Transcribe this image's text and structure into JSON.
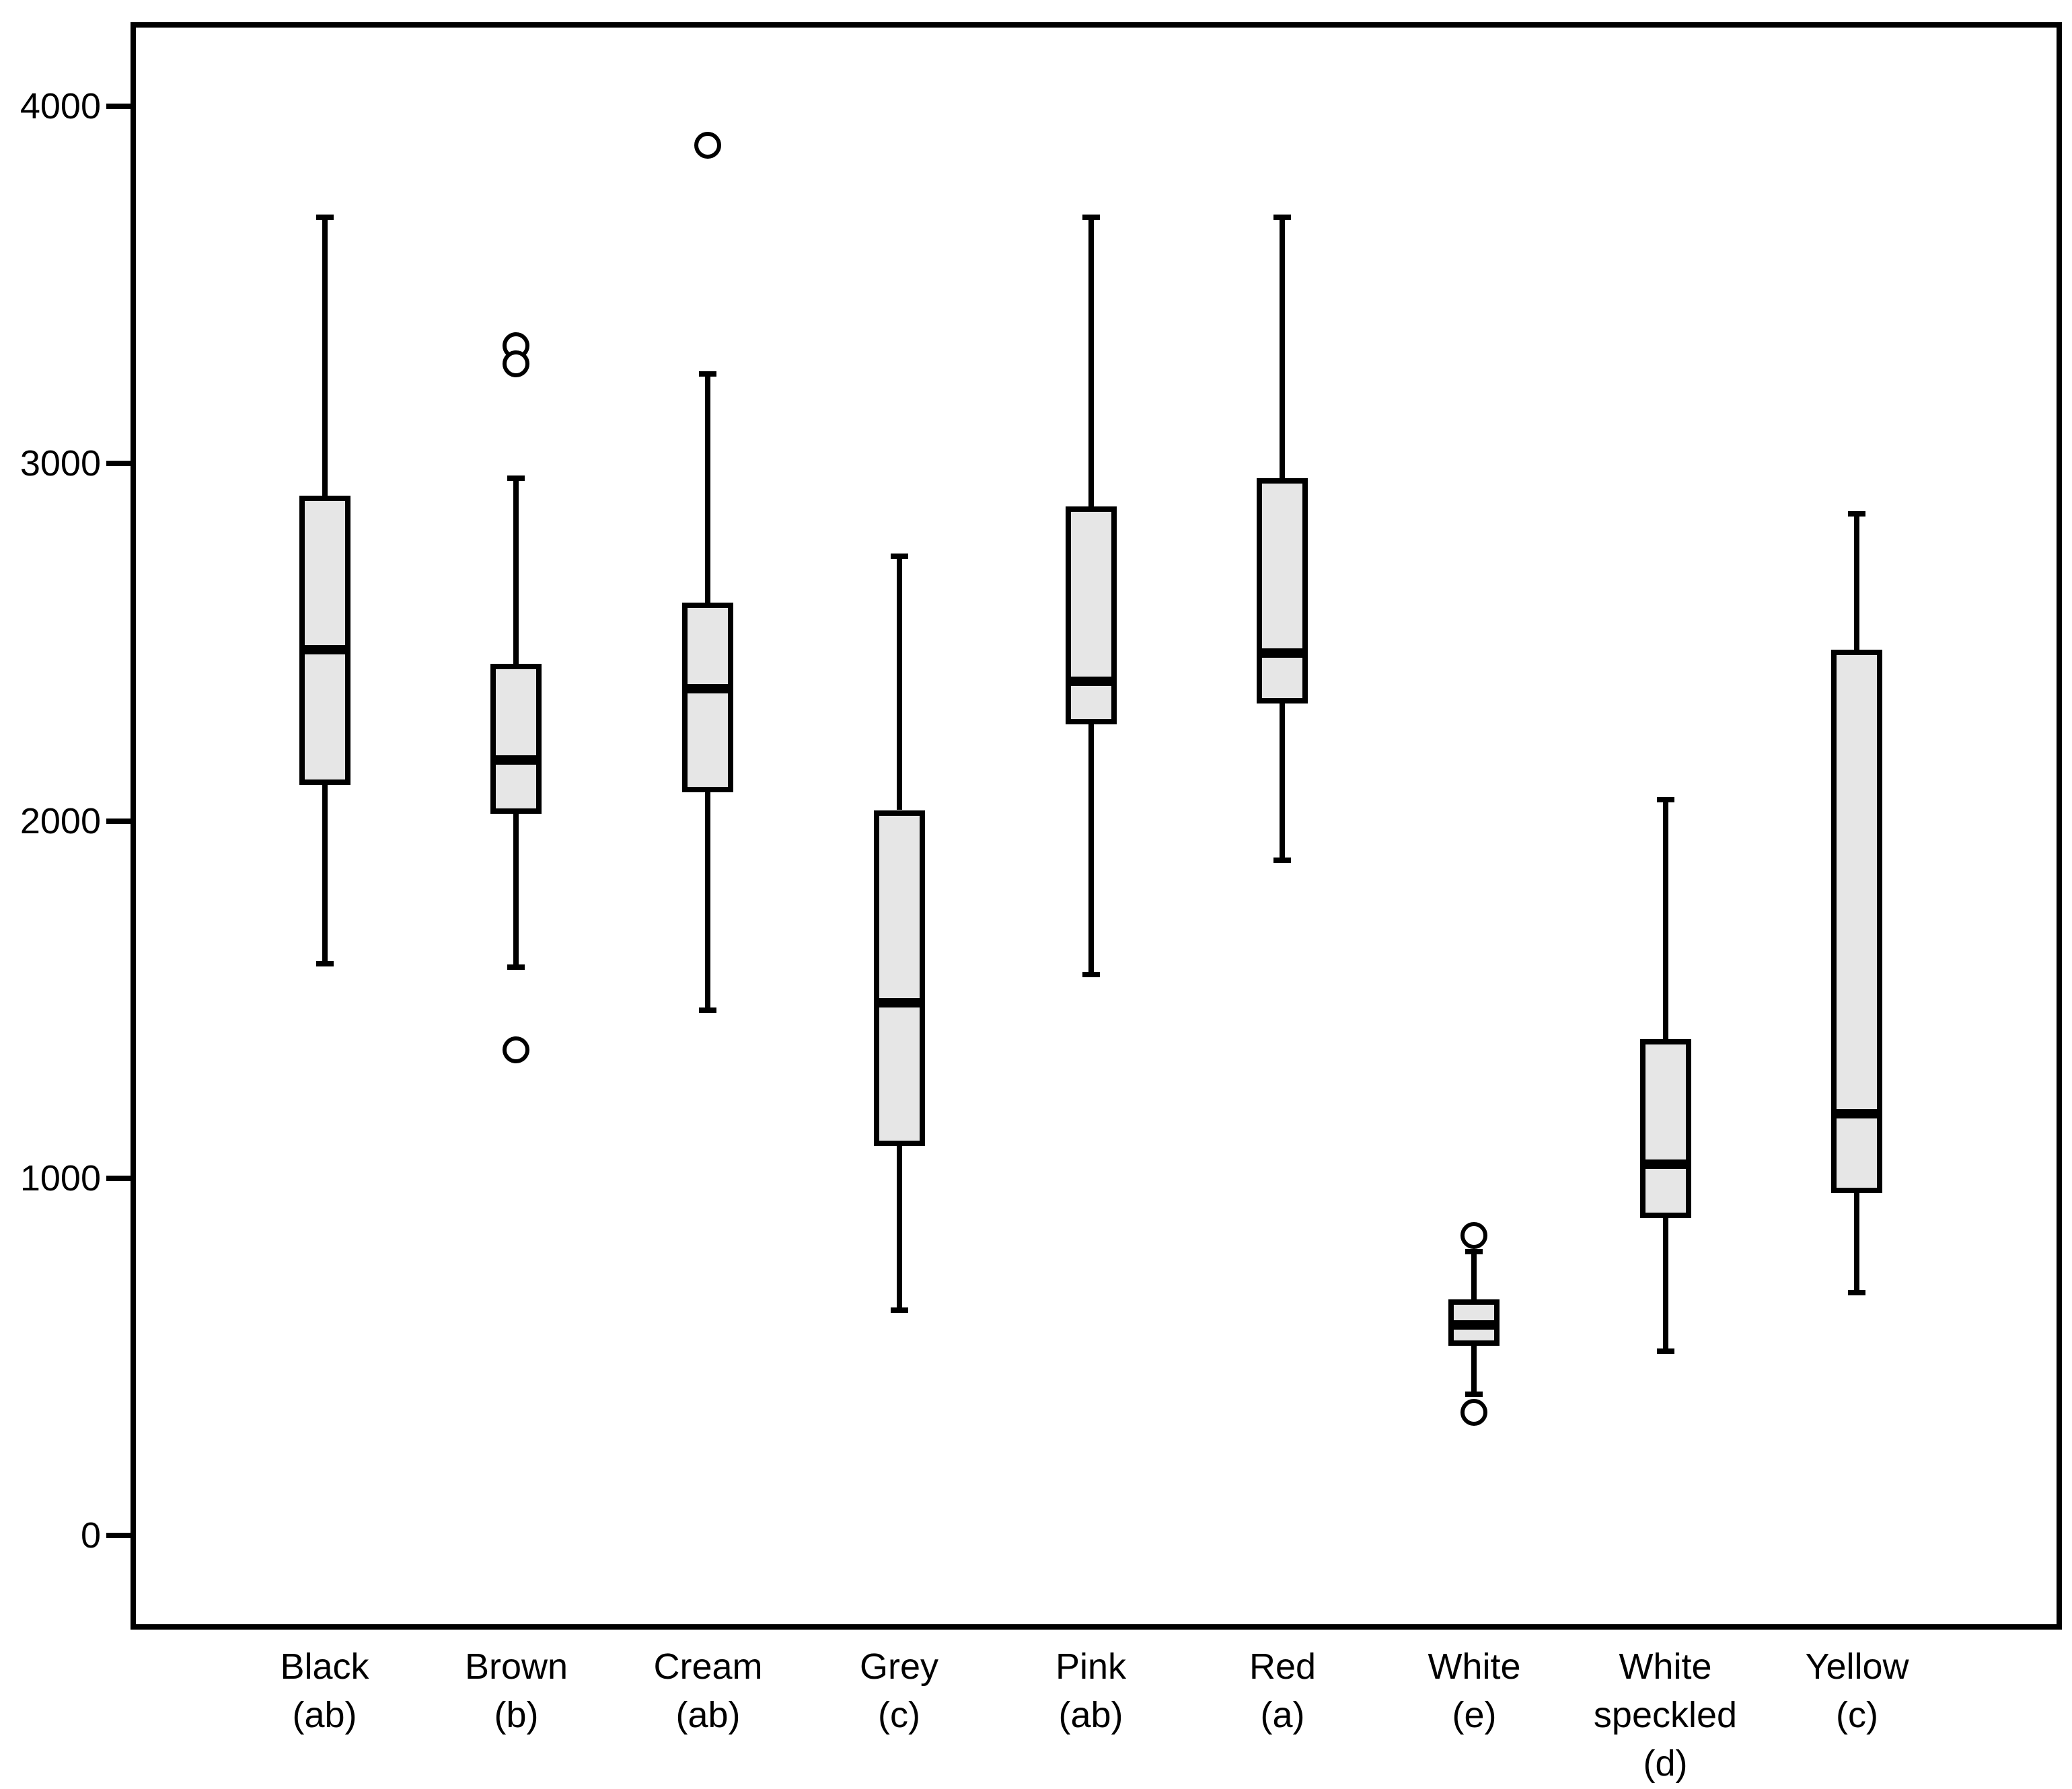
{
  "chart_data": {
    "type": "boxplot",
    "title": "",
    "xlabel": "",
    "ylabel": "",
    "ylim": [
      0,
      4000
    ],
    "yticks": [
      4000,
      3000,
      2000,
      1000,
      0
    ],
    "ytick_labels": [
      "4000",
      "3000",
      "2000",
      "1000",
      "0"
    ],
    "grid": false,
    "legend": null,
    "box_fill_color": "#e6e6e6",
    "line_color": "#000000",
    "background_color": "#ffffff",
    "categories": [
      "Black (ab)",
      "Brown (b)",
      "Cream (ab)",
      "Grey (c)",
      "Pink (ab)",
      "Red (a)",
      "White (e)",
      "White speckled (d)",
      "Yellow (c)"
    ],
    "category_label_lines": [
      [
        "Black",
        "(ab)"
      ],
      [
        "Brown",
        "(b)"
      ],
      [
        "Cream",
        "(ab)"
      ],
      [
        "Grey",
        "(c)"
      ],
      [
        "Pink",
        "(ab)"
      ],
      [
        "Red",
        "(a)"
      ],
      [
        "White",
        "(e)"
      ],
      [
        "White",
        "speckled",
        "(d)"
      ],
      [
        "Yellow",
        "(c)"
      ]
    ],
    "series": [
      {
        "name": "Black (ab)",
        "whisker_low": 1600,
        "q1": 2100,
        "median": 2480,
        "q3": 2910,
        "whisker_high": 3690,
        "outliers": []
      },
      {
        "name": "Brown (b)",
        "whisker_low": 1590,
        "q1": 2020,
        "median": 2170,
        "q3": 2440,
        "whisker_high": 2960,
        "outliers": [
          3330,
          3280,
          1360
        ]
      },
      {
        "name": "Cream (ab)",
        "whisker_low": 1470,
        "q1": 2080,
        "median": 2370,
        "q3": 2610,
        "whisker_high": 3250,
        "outliers": [
          3890
        ]
      },
      {
        "name": "Grey (c)",
        "whisker_low": 630,
        "q1": 1090,
        "median": 1490,
        "q3": 2030,
        "whisker_high": 2740,
        "outliers": []
      },
      {
        "name": "Pink (ab)",
        "whisker_low": 1570,
        "q1": 2270,
        "median": 2390,
        "q3": 2880,
        "whisker_high": 3690,
        "outliers": []
      },
      {
        "name": "Red (a)",
        "whisker_low": 1890,
        "q1": 2330,
        "median": 2470,
        "q3": 2960,
        "whisker_high": 3690,
        "outliers": []
      },
      {
        "name": "White (e)",
        "whisker_low": 395,
        "q1": 530,
        "median": 590,
        "q3": 660,
        "whisker_high": 795,
        "outliers": [
          840,
          345
        ]
      },
      {
        "name": "White speckled (d)",
        "whisker_low": 515,
        "q1": 890,
        "median": 1040,
        "q3": 1390,
        "whisker_high": 2060,
        "outliers": []
      },
      {
        "name": "Yellow (c)",
        "whisker_low": 680,
        "q1": 960,
        "median": 1180,
        "q3": 2480,
        "whisker_high": 2860,
        "outliers": []
      }
    ]
  }
}
